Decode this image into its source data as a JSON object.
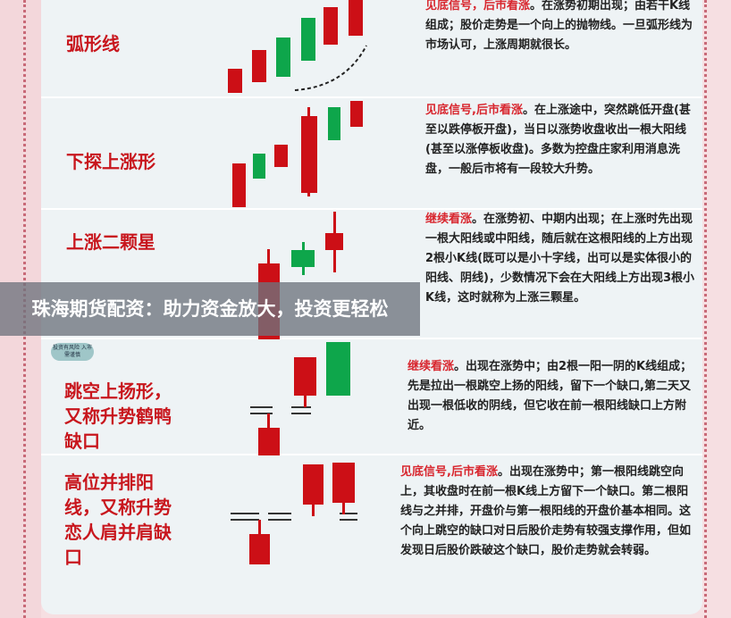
{
  "patterns": [
    {
      "name": "弧形线",
      "highlight": "见底信号，后市看涨",
      "text": "。在涨势初期出现；由若干K线组成；股价走势是一个向上的抛物线。一旦弧形线为市场认可，上涨周期就很长。"
    },
    {
      "name": "下探上涨形",
      "highlight": "见底信号,后市看涨",
      "text": "。在上涨途中，突然跳低开盘(甚至以跌停板开盘)，当日以涨势收盘收出一根大阳线(甚至以涨停板收盘)。多数为控盘庄家利用消息洗盘，一般后市将有一段较大升势。"
    },
    {
      "name": "上涨二颗星",
      "highlight": "继续看涨",
      "text": "。在涨势初、中期内出现；在上涨时先出现一根大阳线或中阳线，随后就在这根阳线的上方出现2根小K线(既可以是小十字线，出可以是实体很小的阳线、阴线)，少数情况下会在大阳线上方出现3根小K线，这时就称为上涨三颗星。"
    },
    {
      "name": "跳空上扬形，又称升势鹤鸭缺口",
      "highlight": "继续看涨",
      "text": "。出现在涨势中；由2根一阳一阴的K线组成；先是拉出一根跳空上扬的阳线，留下一个缺口,第二天又出现一根低收的阴线，但它收在前一根阳线缺口上方附近。"
    },
    {
      "name": "高位并排阳线，又称升势恋人肩并肩缺口",
      "highlight": "见底信号,后市看涨",
      "text": "。出现在涨势中；第一根阳线跳空向上，其收盘时在前一根K线上方留下一个缺口。第二根阳线与之并排，开盘价与第一根阳线的开盘价基本相同。这个向上跳空的缺口对日后股价走势有较强支撑作用，但如发现日后股价跌破这个缺口，股价走势就会转弱。"
    }
  ],
  "watermark": "投资有风险 入市需谨慎",
  "banner": "珠海期货配资：助力资金放大，投资更轻松",
  "colors": {
    "bullish_red": "#cc0f16",
    "bearish_green": "#0ea64b",
    "accent": "#d8262e"
  }
}
